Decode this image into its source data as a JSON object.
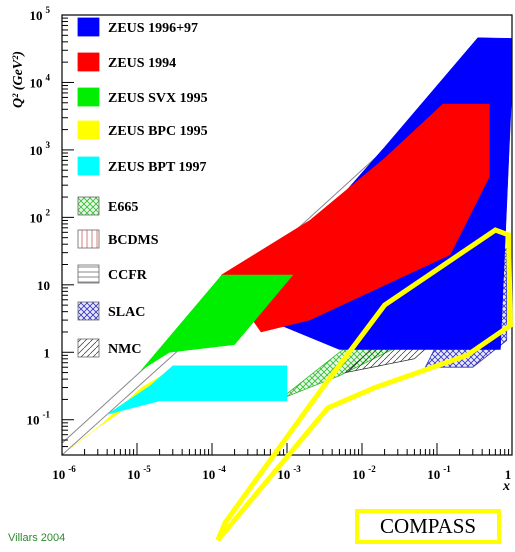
{
  "chart_data": {
    "type": "area",
    "xlabel": "x",
    "ylabel": "Q² (GeV²)",
    "xscale": "log",
    "yscale": "log",
    "xlim": [
      1e-06,
      1
    ],
    "ylim": [
      0.03,
      100000
    ],
    "x_ticks": [
      {
        "value": 1e-06,
        "base": "10",
        "exp": "-6"
      },
      {
        "value": 1e-05,
        "base": "10",
        "exp": "-5"
      },
      {
        "value": 0.0001,
        "base": "10",
        "exp": "-4"
      },
      {
        "value": 0.001,
        "base": "10",
        "exp": "-3"
      },
      {
        "value": 0.01,
        "base": "10",
        "exp": "-2"
      },
      {
        "value": 0.1,
        "base": "10",
        "exp": "-1"
      },
      {
        "value": 1,
        "base": "1",
        "exp": ""
      }
    ],
    "y_ticks": [
      {
        "value": 0.1,
        "base": "10",
        "exp": "-1"
      },
      {
        "value": 1,
        "base": "1",
        "exp": ""
      },
      {
        "value": 10,
        "base": "10",
        "exp": ""
      },
      {
        "value": 100,
        "base": "10",
        "exp": "2"
      },
      {
        "value": 1000,
        "base": "10",
        "exp": "3"
      },
      {
        "value": 10000,
        "base": "10",
        "exp": "4"
      },
      {
        "value": 100000,
        "base": "10",
        "exp": "5"
      }
    ],
    "legend_position": "top-left",
    "series": [
      {
        "name": "ZEUS 1996+97",
        "color": "#0000ff",
        "fill": "solid",
        "points": [
          [
            0.000133,
            10
          ],
          [
            0.002,
            60
          ],
          [
            0.02,
            1100
          ],
          [
            0.35,
            46000
          ],
          [
            1,
            45000
          ],
          [
            1,
            9000
          ],
          [
            0.7,
            1.1
          ],
          [
            0.005,
            1.1
          ],
          [
            0.0004,
            3.5
          ],
          [
            0.000133,
            10
          ]
        ]
      },
      {
        "name": "ZEUS 1994",
        "color": "#ff0000",
        "fill": "solid",
        "points": [
          [
            0.000133,
            14
          ],
          [
            0.002,
            90
          ],
          [
            0.02,
            750
          ],
          [
            0.12,
            4800
          ],
          [
            0.5,
            4800
          ],
          [
            0.5,
            400
          ],
          [
            0.15,
            28
          ],
          [
            0.002,
            3
          ],
          [
            0.00045,
            2
          ],
          [
            0.000133,
            14
          ]
        ]
      },
      {
        "name": "ZEUS SVX 1995",
        "color": "#00ee00",
        "fill": "solid",
        "points": [
          [
            1.15e-05,
            0.55
          ],
          [
            0.000135,
            14
          ],
          [
            0.0012,
            14
          ],
          [
            0.0002,
            1.3
          ],
          [
            2.7e-05,
            1
          ],
          [
            1.15e-05,
            0.55
          ]
        ]
      },
      {
        "name": "ZEUS BPC 1995",
        "color": "#ffff00",
        "fill": "solid",
        "points": [
          [
            1.3e-06,
            0.038
          ],
          [
            2.7e-06,
            0.07
          ],
          [
            6e-06,
            0.13
          ],
          [
            1.15e-05,
            0.26
          ],
          [
            2.7e-05,
            0.5
          ],
          [
            3.5e-05,
            0.63
          ],
          [
            1.15e-05,
            0.3
          ],
          [
            2.9e-06,
            0.074
          ],
          [
            1.3e-06,
            0.038
          ]
        ]
      },
      {
        "name": "ZEUS BPT 1997",
        "color": "#00ffff",
        "fill": "solid",
        "points": [
          [
            4e-06,
            0.12
          ],
          [
            1.5e-05,
            0.32
          ],
          [
            3e-05,
            0.63
          ],
          [
            0.001,
            0.63
          ],
          [
            0.001,
            0.19
          ],
          [
            2e-05,
            0.19
          ],
          [
            4e-06,
            0.12
          ]
        ]
      },
      {
        "name": "E665",
        "color": "#33bb33",
        "fill": "crosshatch",
        "points": [
          [
            0.0008,
            0.2
          ],
          [
            0.005,
            1
          ],
          [
            0.04,
            5
          ],
          [
            0.05,
            1.6
          ],
          [
            0.005,
            0.45
          ],
          [
            0.0008,
            0.2
          ]
        ]
      },
      {
        "name": "BCDMS",
        "color": "#cc4444",
        "fill": "vertical-lines",
        "points": [
          [
            0.07,
            7
          ],
          [
            0.5,
            260
          ],
          [
            0.75,
            260
          ],
          [
            0.75,
            20
          ],
          [
            0.07,
            7
          ]
        ]
      },
      {
        "name": "CCFR",
        "color": "#555555",
        "fill": "horizontal-lines",
        "points": [
          [
            0.01,
            1.2
          ],
          [
            0.15,
            140
          ],
          [
            0.7,
            140
          ],
          [
            0.7,
            1.2
          ],
          [
            0.01,
            1.2
          ]
        ]
      },
      {
        "name": "SLAC",
        "color": "#3333bb",
        "fill": "crosshatch",
        "points": [
          [
            0.07,
            0.6
          ],
          [
            0.25,
            10
          ],
          [
            0.85,
            35
          ],
          [
            0.85,
            1.5
          ],
          [
            0.3,
            0.6
          ],
          [
            0.07,
            0.6
          ]
        ]
      },
      {
        "name": "NMC",
        "color": "#333333",
        "fill": "diagonal-lines",
        "points": [
          [
            0.006,
            0.5
          ],
          [
            0.05,
            4
          ],
          [
            0.5,
            80
          ],
          [
            0.5,
            8
          ],
          [
            0.05,
            0.8
          ],
          [
            0.006,
            0.5
          ]
        ]
      }
    ],
    "compass_region": {
      "color": "#ffff00",
      "points": [
        [
          0.02,
          5
        ],
        [
          0.6,
          65
        ],
        [
          0.9,
          55
        ],
        [
          0.95,
          2.5
        ],
        [
          0.25,
          0.9
        ],
        [
          0.015,
          0.3
        ],
        [
          0.0035,
          0.15
        ],
        [
          0.00012,
          0.0015
        ],
        [
          0.00015,
          0.003
        ],
        [
          0.003,
          0.3
        ],
        [
          0.02,
          5
        ]
      ]
    },
    "kinematic_limits": [
      [
        [
          1e-06,
          0.045
        ],
        [
          0.79,
          42000
        ]
      ],
      [
        [
          1e-06,
          0.03
        ],
        [
          0.1,
          3000
        ]
      ]
    ]
  },
  "annotation": {
    "author": "Villars 2004",
    "compass_label": "COMPASS"
  }
}
